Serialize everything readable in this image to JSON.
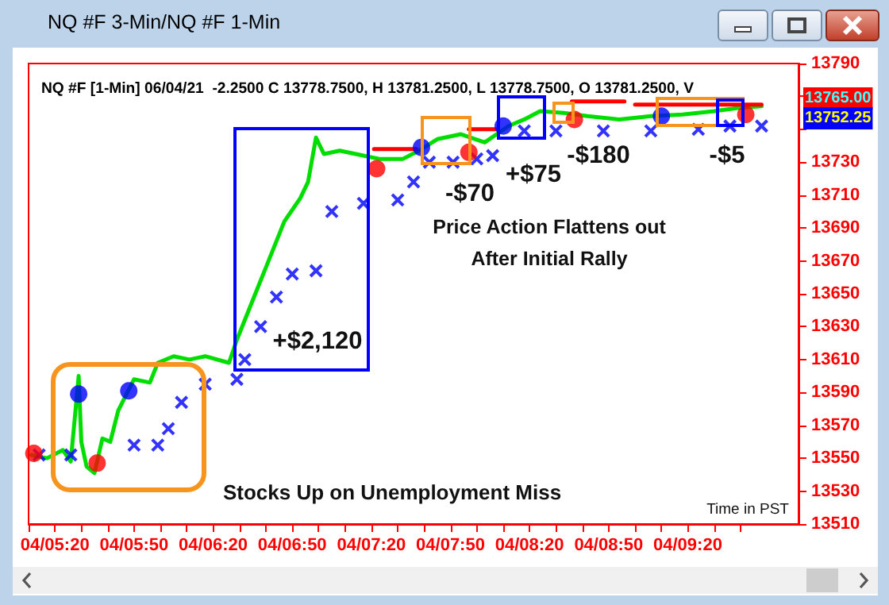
{
  "chart_data": {
    "type": "line",
    "title": "NQ #F 3-Min/NQ #F 1-Min",
    "subtitle": "NQ #F [1-Min] 06/04/21  -2.2500 C 13778.7500, H 13781.2500, L 13778.7500, O 13781.2500, V",
    "xlim": [
      "--06-04T05:10",
      "--06-04T10:02"
    ],
    "xticks": [
      {
        "value": "--06-04T05:10",
        "label": null
      },
      {
        "value": "--06-04T05:20",
        "label": "04/05:20"
      },
      {
        "value": "--06-04T05:30",
        "label": null
      },
      {
        "value": "--06-04T05:40",
        "label": null
      },
      {
        "value": "--06-04T05:50",
        "label": "04/05:50"
      },
      {
        "value": "--06-04T06:00",
        "label": null
      },
      {
        "value": "--06-04T06:10",
        "label": null
      },
      {
        "value": "--06-04T06:20",
        "label": "04/06:20"
      },
      {
        "value": "--06-04T06:30",
        "label": null
      },
      {
        "value": "--06-04T06:40",
        "label": null
      },
      {
        "value": "--06-04T06:50",
        "label": "04/06:50"
      },
      {
        "value": "--06-04T07:00",
        "label": null
      },
      {
        "value": "--06-04T07:10",
        "label": null
      },
      {
        "value": "--06-04T07:20",
        "label": "04/07:20"
      },
      {
        "value": "--06-04T07:30",
        "label": null
      },
      {
        "value": "--06-04T07:40",
        "label": null
      },
      {
        "value": "--06-04T07:50",
        "label": "04/07:50"
      },
      {
        "value": "--06-04T08:00",
        "label": null
      },
      {
        "value": "--06-04T08:10",
        "label": null
      },
      {
        "value": "--06-04T08:20",
        "label": "04/08:20"
      },
      {
        "value": "--06-04T08:30",
        "label": null
      },
      {
        "value": "--06-04T08:40",
        "label": null
      },
      {
        "value": "--06-04T08:50",
        "label": "04/08:50"
      },
      {
        "value": "--06-04T09:00",
        "label": null
      },
      {
        "value": "--06-04T09:10",
        "label": null
      },
      {
        "value": "--06-04T09:20",
        "label": "04/09:20"
      },
      {
        "value": "--06-04T09:30",
        "label": null
      },
      {
        "value": "--06-04T09:40",
        "label": null
      }
    ],
    "ylim": [
      13510,
      13790
    ],
    "yticks": [
      13510,
      13530,
      13550,
      13570,
      13590,
      13610,
      13630,
      13650,
      13670,
      13690,
      13710,
      13730,
      {
        "value": 13750,
        "label": null
      },
      {
        "value": 13770,
        "label": null
      },
      13790
    ],
    "series": [
      {
        "color": "#00dd00",
        "marker": "none",
        "line_style": "solid",
        "x": [
          "--06-04T05:11",
          "--06-04T05:17",
          "--06-04T05:23",
          "--06-04T05:26",
          "--06-04T05:29",
          "--06-04T05:30",
          "--06-04T05:32",
          "--06-04T05:35",
          "--06-04T05:38",
          "--06-04T05:41",
          "--06-04T05:44",
          "--06-04T05:50",
          "--06-04T05:56",
          "--06-04T05:59",
          "--06-04T06:05",
          "--06-04T06:11",
          "--06-04T06:17",
          "--06-04T06:26",
          "--06-04T06:29",
          "--06-04T06:35",
          "--06-04T06:41",
          "--06-04T06:47",
          "--06-04T06:53",
          "--06-04T06:56",
          "--06-04T06:59",
          "--06-04T07:02",
          "--06-04T07:08",
          "--06-04T07:17",
          "--06-04T07:23",
          "--06-04T07:32",
          "--06-04T07:38",
          "--06-04T07:45",
          "--06-04T07:54",
          "--06-04T08:03",
          "--06-04T08:12",
          "--06-04T08:18",
          "--06-04T08:24",
          "--06-04T08:33",
          "--06-04T08:42",
          "--06-04T08:54",
          "--06-04T09:06",
          "--06-04T09:18",
          "--06-04T09:30",
          "--06-04T09:39",
          "--06-04T09:48"
        ],
        "values": [
          13552,
          13550,
          13555,
          13548,
          13600,
          13560,
          13545,
          13541,
          13562,
          13560,
          13579,
          13598,
          13596,
          13608,
          13612,
          13610,
          13612,
          13608,
          13622,
          13646,
          13670,
          13694,
          13708,
          13718,
          13745,
          13735,
          13737,
          13734,
          13732,
          13732,
          13737,
          13744,
          13747,
          13742,
          13752,
          13756,
          13761,
          13760,
          13758,
          13756,
          13758,
          13759,
          13761,
          13763,
          13764
        ]
      },
      {
        "type": "scatter",
        "color": "#0000ff",
        "marker": "cross",
        "x": [
          "--06-04T05:14",
          "--06-04T05:26",
          "--06-04T05:50",
          "--06-04T05:59",
          "--06-04T06:03",
          "--06-04T06:08",
          "--06-04T06:17",
          "--06-04T06:29",
          "--06-04T06:32",
          "--06-04T06:38",
          "--06-04T06:44",
          "--06-04T06:50",
          "--06-04T06:59",
          "--06-04T07:05",
          "--06-04T07:17",
          "--06-04T07:30",
          "--06-04T07:36",
          "--06-04T07:42",
          "--06-04T07:51",
          "--06-04T08:00",
          "--06-04T08:06",
          "--06-04T08:18",
          "--06-04T08:30",
          "--06-04T08:48",
          "--06-04T09:06",
          "--06-04T09:24",
          "--06-04T09:36",
          "--06-04T09:48"
        ],
        "values": [
          13552,
          13552,
          13558,
          13558,
          13568,
          13584,
          13595,
          13598,
          13610,
          13630,
          13648,
          13662,
          13664,
          13700,
          13705,
          13707,
          13718,
          13730,
          13730,
          13732,
          13734,
          13749,
          13749,
          13749,
          13749,
          13750,
          13752,
          13752
        ]
      },
      {
        "type": "scatter",
        "color": "#0000ff",
        "marker": "circle",
        "x": [
          "--06-04T05:29",
          "--06-04T05:48",
          "--06-04T07:39",
          "--06-04T08:10",
          "--06-04T09:10"
        ],
        "values": [
          13589,
          13591,
          13739,
          13752,
          13758
        ]
      },
      {
        "type": "scatter",
        "color": "#ff0000",
        "marker": "circle",
        "x": [
          "--06-04T05:12",
          "--06-04T05:36",
          "--06-04T07:22",
          "--06-04T07:57",
          "--06-04T08:37",
          "--06-04T09:42"
        ],
        "values": [
          13553,
          13547,
          13726,
          13736,
          13756,
          13759
        ]
      },
      {
        "type": "line",
        "color": "#ff0000",
        "marker": "none",
        "line_style": "solid",
        "x": [
          "--06-04T07:21",
          "--06-04T07:37",
          "--06-04T07:48",
          "--06-04T07:57",
          "--06-04T08:08",
          "--06-04T08:24",
          "--06-04T08:36",
          "--06-04T08:56",
          "--06-04T08:58",
          "--06-04T09:00",
          "--06-04T09:48"
        ],
        "values": [
          13738,
          13738,
          null,
          13750,
          13750,
          null,
          13767,
          13767,
          null,
          13765,
          13765
        ]
      }
    ],
    "annotations": [
      "+$2,120",
      "-$70",
      "+$75",
      "-$180",
      "-$5",
      "13765.00",
      "13752.25",
      "Price Action Flattens out\nAfter Initial Rally",
      "Stocks Up on Unemployment Miss",
      "Time in PST"
    ]
  }
}
